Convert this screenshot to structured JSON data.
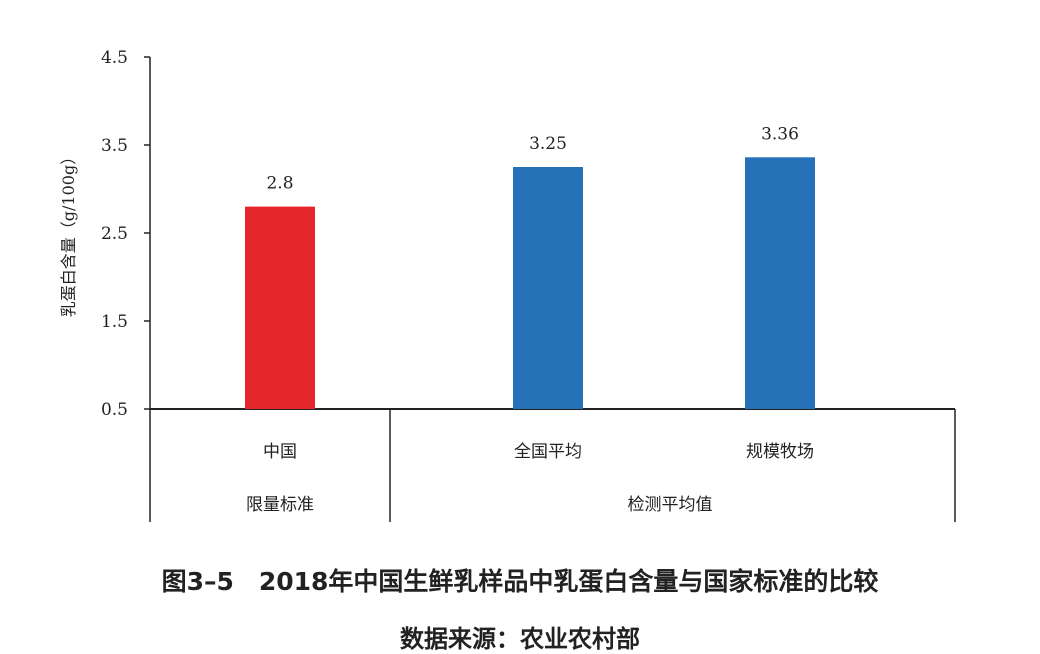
{
  "chart_data": {
    "type": "bar",
    "title": "图3–5　2018年中国生鲜乳样品中乳蛋白含量与国家标准的比较",
    "source": "数据来源：农业农村部",
    "ylabel": "乳蛋白含量（g/100g）",
    "xlabel": "",
    "ylim": [
      0.5,
      4.5
    ],
    "yticks": [
      "0.5",
      "1.5",
      "2.5",
      "3.5",
      "4.5"
    ],
    "categories": [
      "中国",
      "全国平均",
      "规模牧场"
    ],
    "groups": [
      {
        "label": "限量标准",
        "categories": [
          "中国"
        ]
      },
      {
        "label": "检测平均值",
        "categories": [
          "全国平均",
          "规模牧场"
        ]
      }
    ],
    "values": [
      2.8,
      3.25,
      3.36
    ],
    "value_labels": [
      "2.8",
      "3.25",
      "3.36"
    ],
    "colors": [
      "#e5262b",
      "#2670b8",
      "#2670b8"
    ],
    "grid": false
  }
}
